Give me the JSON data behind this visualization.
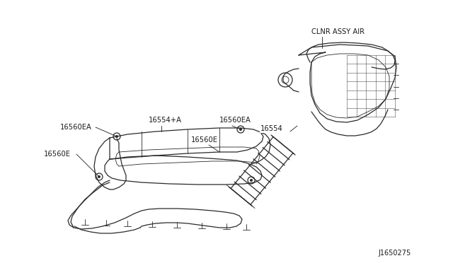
{
  "bg_color": "#ffffff",
  "line_color": "#2a2a2a",
  "diagram_id": "J1650275",
  "font_size": 7.2,
  "font_color": "#1a1a1a",
  "figsize": [
    6.4,
    3.72
  ],
  "dpi": 100,
  "label_clnr": "CLNR ASSY AIR",
  "label_16554": "16554",
  "label_16560EA_1": "16560EA",
  "label_16560E_1": "16560E",
  "label_16554A": "16554+A",
  "label_16560EA_2": "16560EA",
  "label_16560E_2": "16560E"
}
